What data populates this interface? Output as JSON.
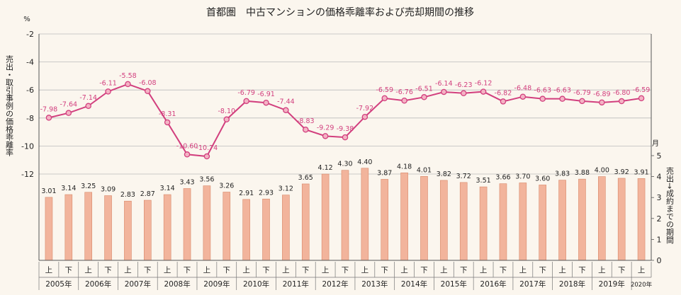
{
  "chart_data": {
    "type": "line+bar",
    "title": "首都圏　中古マンションの価格乖離率および売却期間の推移",
    "left_unit": "%",
    "left_axis_label": "売出・取引事例の価格乖離率",
    "right_unit": "月",
    "right_axis_label": "売出→成約までの期間",
    "left_ticks": [
      "-2",
      "-4",
      "-6",
      "-8",
      "-10",
      "-12"
    ],
    "right_ticks": [
      "0",
      "1",
      "2",
      "3",
      "4",
      "5"
    ],
    "left_ylim": [
      -12,
      -2
    ],
    "right_ylim": [
      0,
      5
    ],
    "grid": true,
    "halves": [
      "上",
      "下",
      "上",
      "下",
      "上",
      "下",
      "上",
      "下",
      "上",
      "下",
      "上",
      "下",
      "上",
      "下",
      "上",
      "下",
      "上",
      "下",
      "上",
      "下",
      "上",
      "下",
      "上",
      "下",
      "上",
      "下",
      "上",
      "下",
      "上",
      "下",
      "上"
    ],
    "year_labels": [
      "2005年",
      "2006年",
      "2007年",
      "2008年",
      "2009年",
      "2010年",
      "2011年",
      "2012年",
      "2013年",
      "2014年",
      "2015年",
      "2016年",
      "2017年",
      "2018年",
      "2019年",
      "2020年"
    ],
    "series": [
      {
        "kind": "line",
        "axis": "left",
        "color": "#d23f7e",
        "values": [
          -7.98,
          -7.64,
          -7.14,
          -6.11,
          -5.58,
          -6.08,
          -8.31,
          -10.6,
          -10.74,
          -8.1,
          -6.79,
          -6.91,
          -7.44,
          -8.83,
          -9.29,
          -9.38,
          -7.92,
          -6.59,
          -6.76,
          -6.51,
          -6.14,
          -6.23,
          -6.12,
          -6.82,
          -6.48,
          -6.63,
          -6.63,
          -6.79,
          -6.89,
          -6.8,
          -6.59
        ],
        "labels": [
          "-7.98",
          "-7.64",
          "-7.14",
          "-6.11",
          "-5.58",
          "-6.08",
          "-8.31",
          "-10.60",
          "-10.74",
          "-8.10",
          "-6.79",
          "-6.91",
          "-7.44",
          "-8.83",
          "-9.29",
          "-9.38",
          "-7.92",
          "-6.59",
          "-6.76",
          "-6.51",
          "-6.14",
          "-6.23",
          "-6.12",
          "-6.82",
          "-6.48",
          "-6.63",
          "-6.63",
          "-6.79",
          "-6.89",
          "-6.80",
          "-6.59"
        ]
      },
      {
        "kind": "bar",
        "axis": "right",
        "color": "#f2b49c",
        "values": [
          3.01,
          3.14,
          3.25,
          3.09,
          2.83,
          2.87,
          3.14,
          3.43,
          3.56,
          3.26,
          2.91,
          2.93,
          3.12,
          3.65,
          4.12,
          4.3,
          4.4,
          3.87,
          4.18,
          4.01,
          3.82,
          3.72,
          3.51,
          3.66,
          3.7,
          3.6,
          3.83,
          3.88,
          4.0,
          3.92,
          3.91
        ],
        "labels": [
          "3.01",
          "3.14",
          "3.25",
          "3.09",
          "2.83",
          "2.87",
          "3.14",
          "3.43",
          "3.56",
          "3.26",
          "2.91",
          "2.93",
          "3.12",
          "3.65",
          "4.12",
          "4.30",
          "4.40",
          "3.87",
          "4.18",
          "4.01",
          "3.82",
          "3.72",
          "3.51",
          "3.66",
          "3.70",
          "3.60",
          "3.83",
          "3.88",
          "4.00",
          "3.92",
          "3.91"
        ]
      }
    ]
  }
}
